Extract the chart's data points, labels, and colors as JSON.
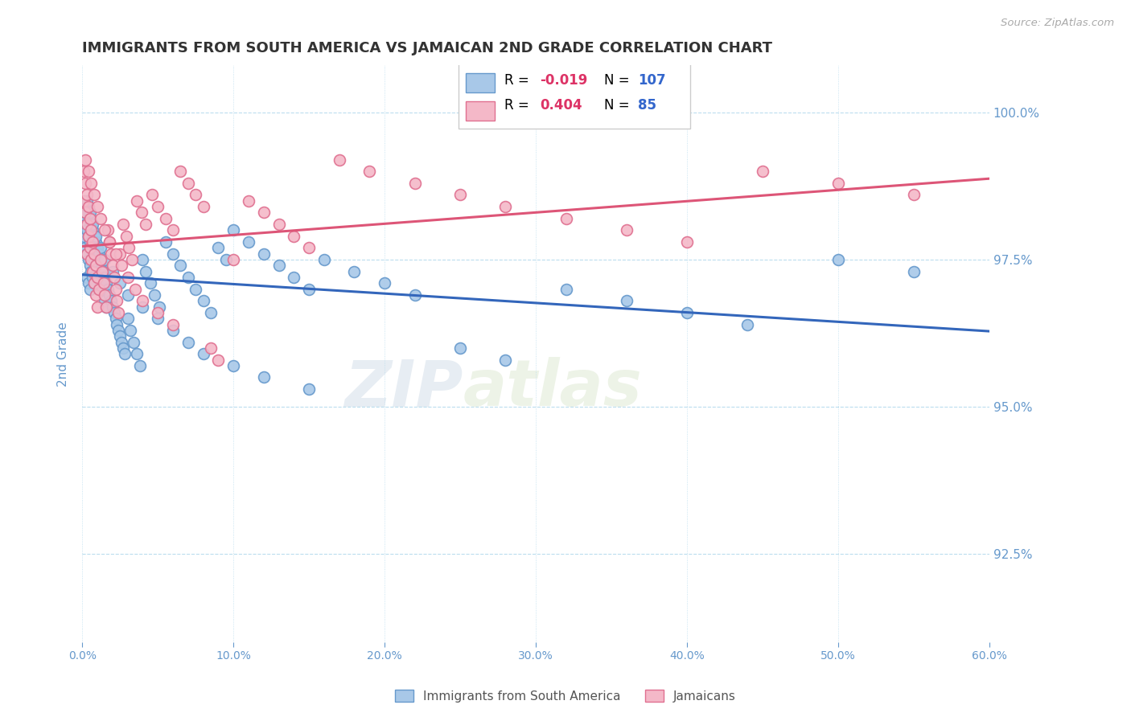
{
  "title": "IMMIGRANTS FROM SOUTH AMERICA VS JAMAICAN 2ND GRADE CORRELATION CHART",
  "source": "Source: ZipAtlas.com",
  "ylabel": "2nd Grade",
  "xlim": [
    0.0,
    0.6
  ],
  "ylim": [
    0.91,
    1.008
  ],
  "yticks": [
    0.925,
    0.95,
    0.975,
    1.0
  ],
  "ytick_labels": [
    "92.5%",
    "95.0%",
    "97.5%",
    "100.0%"
  ],
  "xtick_values": [
    0.0,
    0.1,
    0.2,
    0.3,
    0.4,
    0.5,
    0.6
  ],
  "blue_R": -0.019,
  "blue_N": 107,
  "pink_R": 0.404,
  "pink_N": 85,
  "legend_blue": "Immigrants from South America",
  "legend_pink": "Jamaicans",
  "blue_color": "#a8c8e8",
  "blue_edge": "#6699cc",
  "pink_color": "#f4b8c8",
  "pink_edge": "#e07090",
  "blue_line_color": "#3366bb",
  "pink_line_color": "#dd5577",
  "watermark_zip": "ZIP",
  "watermark_atlas": "atlas",
  "title_color": "#333333",
  "axis_color": "#6699cc",
  "grid_color": "#bbddee",
  "blue_scatter_x": [
    0.001,
    0.001,
    0.002,
    0.002,
    0.002,
    0.003,
    0.003,
    0.003,
    0.003,
    0.004,
    0.004,
    0.004,
    0.004,
    0.005,
    0.005,
    0.005,
    0.005,
    0.006,
    0.006,
    0.006,
    0.007,
    0.007,
    0.007,
    0.008,
    0.008,
    0.008,
    0.009,
    0.009,
    0.01,
    0.01,
    0.011,
    0.011,
    0.012,
    0.012,
    0.013,
    0.013,
    0.014,
    0.015,
    0.015,
    0.016,
    0.016,
    0.017,
    0.018,
    0.019,
    0.02,
    0.021,
    0.022,
    0.023,
    0.024,
    0.025,
    0.026,
    0.027,
    0.028,
    0.03,
    0.032,
    0.034,
    0.036,
    0.038,
    0.04,
    0.042,
    0.045,
    0.048,
    0.051,
    0.055,
    0.06,
    0.065,
    0.07,
    0.075,
    0.08,
    0.085,
    0.09,
    0.095,
    0.1,
    0.11,
    0.12,
    0.13,
    0.14,
    0.15,
    0.16,
    0.18,
    0.2,
    0.22,
    0.25,
    0.28,
    0.32,
    0.36,
    0.4,
    0.44,
    0.5,
    0.55,
    0.003,
    0.005,
    0.007,
    0.009,
    0.012,
    0.015,
    0.02,
    0.025,
    0.03,
    0.04,
    0.05,
    0.06,
    0.07,
    0.08,
    0.1,
    0.12,
    0.15
  ],
  "blue_scatter_y": [
    0.983,
    0.979,
    0.985,
    0.981,
    0.977,
    0.984,
    0.98,
    0.976,
    0.972,
    0.983,
    0.979,
    0.975,
    0.971,
    0.982,
    0.978,
    0.974,
    0.97,
    0.981,
    0.977,
    0.973,
    0.98,
    0.976,
    0.972,
    0.979,
    0.975,
    0.971,
    0.978,
    0.974,
    0.977,
    0.973,
    0.976,
    0.972,
    0.975,
    0.971,
    0.974,
    0.97,
    0.973,
    0.972,
    0.968,
    0.971,
    0.967,
    0.97,
    0.969,
    0.968,
    0.967,
    0.966,
    0.965,
    0.964,
    0.963,
    0.962,
    0.961,
    0.96,
    0.959,
    0.965,
    0.963,
    0.961,
    0.959,
    0.957,
    0.975,
    0.973,
    0.971,
    0.969,
    0.967,
    0.978,
    0.976,
    0.974,
    0.972,
    0.97,
    0.968,
    0.966,
    0.977,
    0.975,
    0.98,
    0.978,
    0.976,
    0.974,
    0.972,
    0.97,
    0.975,
    0.973,
    0.971,
    0.969,
    0.96,
    0.958,
    0.97,
    0.968,
    0.966,
    0.964,
    0.975,
    0.973,
    0.985,
    0.983,
    0.981,
    0.979,
    0.977,
    0.975,
    0.973,
    0.971,
    0.969,
    0.967,
    0.965,
    0.963,
    0.961,
    0.959,
    0.957,
    0.955,
    0.953
  ],
  "pink_scatter_x": [
    0.001,
    0.001,
    0.002,
    0.002,
    0.003,
    0.003,
    0.003,
    0.004,
    0.004,
    0.005,
    0.005,
    0.006,
    0.006,
    0.007,
    0.007,
    0.008,
    0.008,
    0.009,
    0.009,
    0.01,
    0.01,
    0.011,
    0.012,
    0.013,
    0.014,
    0.015,
    0.016,
    0.017,
    0.018,
    0.019,
    0.02,
    0.021,
    0.022,
    0.023,
    0.024,
    0.025,
    0.027,
    0.029,
    0.031,
    0.033,
    0.036,
    0.039,
    0.042,
    0.046,
    0.05,
    0.055,
    0.06,
    0.065,
    0.07,
    0.075,
    0.08,
    0.085,
    0.09,
    0.1,
    0.11,
    0.12,
    0.13,
    0.14,
    0.15,
    0.17,
    0.19,
    0.22,
    0.25,
    0.28,
    0.32,
    0.36,
    0.4,
    0.45,
    0.5,
    0.55,
    0.002,
    0.004,
    0.006,
    0.008,
    0.01,
    0.012,
    0.015,
    0.018,
    0.022,
    0.026,
    0.03,
    0.035,
    0.04,
    0.05,
    0.06
  ],
  "pink_scatter_y": [
    0.99,
    0.985,
    0.988,
    0.983,
    0.986,
    0.981,
    0.976,
    0.984,
    0.979,
    0.982,
    0.977,
    0.98,
    0.975,
    0.978,
    0.973,
    0.976,
    0.971,
    0.974,
    0.969,
    0.972,
    0.967,
    0.97,
    0.975,
    0.973,
    0.971,
    0.969,
    0.967,
    0.98,
    0.978,
    0.976,
    0.974,
    0.972,
    0.97,
    0.968,
    0.966,
    0.976,
    0.981,
    0.979,
    0.977,
    0.975,
    0.985,
    0.983,
    0.981,
    0.986,
    0.984,
    0.982,
    0.98,
    0.99,
    0.988,
    0.986,
    0.984,
    0.96,
    0.958,
    0.975,
    0.985,
    0.983,
    0.981,
    0.979,
    0.977,
    0.992,
    0.99,
    0.988,
    0.986,
    0.984,
    0.982,
    0.98,
    0.978,
    0.99,
    0.988,
    0.986,
    0.992,
    0.99,
    0.988,
    0.986,
    0.984,
    0.982,
    0.98,
    0.978,
    0.976,
    0.974,
    0.972,
    0.97,
    0.968,
    0.966,
    0.964
  ]
}
